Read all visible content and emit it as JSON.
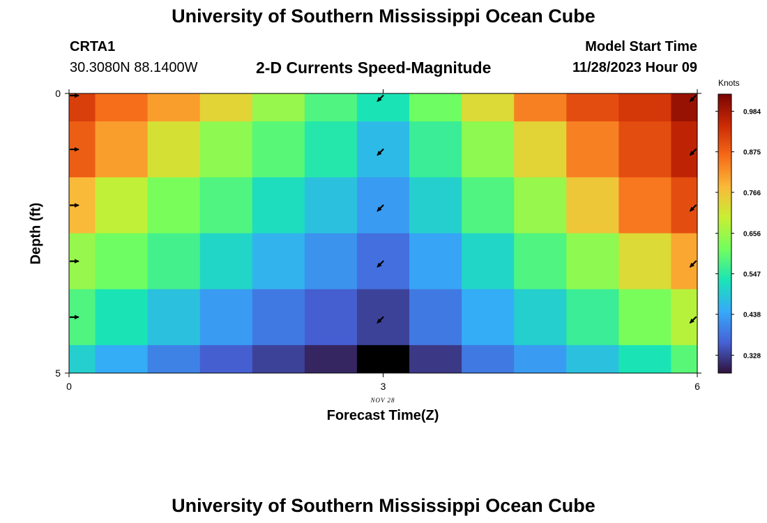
{
  "title": "University of Southern Mississippi Ocean Cube",
  "station": {
    "id": "CRTA1",
    "coords": "30.3080N  88.1400W"
  },
  "subtitle": "2-D Currents Speed-Magnitude",
  "model_start": {
    "label": "Model Start Time",
    "value": "11/28/2023 Hour 09"
  },
  "footer_title": "University of Southern Mississippi Ocean Cube",
  "chart_data": {
    "type": "heatmap",
    "title": "2-D Currents Speed-Magnitude",
    "xlabel": "Forecast Time(Z)",
    "ylabel": "Depth (ft)",
    "x_ticks": [
      "0",
      "3",
      "6"
    ],
    "y_ticks": [
      "0",
      "5"
    ],
    "date_label": "NOV 28",
    "colorbar": {
      "title": "Knots",
      "ticks": [
        "0.984",
        "0.875",
        "0.766",
        "0.656",
        "0.547",
        "0.438",
        "0.328"
      ],
      "range": [
        0.28,
        1.03
      ],
      "colors": [
        "#30123b",
        "#4662d7",
        "#36aaf9",
        "#1ae4b6",
        "#72fe5e",
        "#c7ef34",
        "#faba39",
        "#f66b19",
        "#cb2a04",
        "#7a0403"
      ]
    },
    "x_values": [
      0,
      0.5,
      1,
      1.5,
      2,
      2.5,
      3,
      3.5,
      4,
      4.5,
      5,
      5.5,
      6
    ],
    "depth_values": [
      0,
      1,
      2,
      3,
      4,
      5
    ],
    "values": [
      [
        0.92,
        0.86,
        0.81,
        0.74,
        0.65,
        0.58,
        0.53,
        0.61,
        0.73,
        0.84,
        0.9,
        0.93,
        1.0
      ],
      [
        0.88,
        0.81,
        0.72,
        0.64,
        0.59,
        0.54,
        0.47,
        0.56,
        0.64,
        0.74,
        0.84,
        0.9,
        0.96
      ],
      [
        0.78,
        0.69,
        0.62,
        0.58,
        0.52,
        0.48,
        0.43,
        0.5,
        0.58,
        0.65,
        0.76,
        0.85,
        0.9
      ],
      [
        0.65,
        0.61,
        0.57,
        0.51,
        0.46,
        0.42,
        0.38,
        0.44,
        0.51,
        0.58,
        0.64,
        0.73,
        0.8
      ],
      [
        0.58,
        0.53,
        0.48,
        0.43,
        0.39,
        0.36,
        0.33,
        0.39,
        0.45,
        0.5,
        0.56,
        0.62,
        0.68
      ],
      [
        0.5,
        0.45,
        0.4,
        0.36,
        0.33,
        0.3,
        0.26,
        0.32,
        0.39,
        0.43,
        0.48,
        0.53,
        0.59
      ]
    ],
    "vector_x": [
      0,
      3,
      6
    ],
    "vector_depths": [
      0,
      1,
      2,
      3,
      4
    ],
    "vector_direction_deg": [
      [
        90,
        225,
        225
      ],
      [
        90,
        225,
        225
      ],
      [
        90,
        225,
        225
      ],
      [
        90,
        225,
        225
      ],
      [
        90,
        225,
        225
      ]
    ]
  }
}
